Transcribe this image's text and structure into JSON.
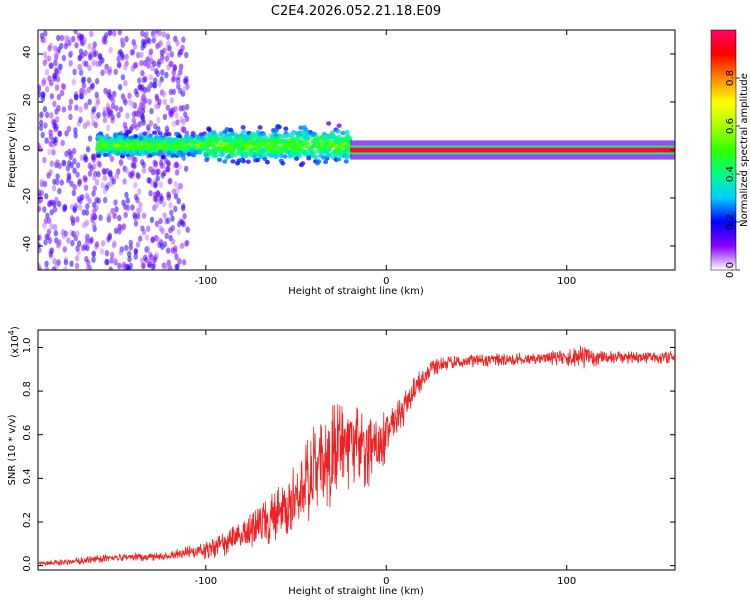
{
  "title": "C2E4.2026.052.21.18.E09",
  "chart_data": [
    {
      "type": "heatmap",
      "name": "spectrogram",
      "xlabel": "Height of straight line (km)",
      "ylabel": "Frequency (Hz)",
      "xlim": [
        -193,
        160
      ],
      "ylim": [
        -50,
        50
      ],
      "xticks": [
        -100,
        0,
        100
      ],
      "xtick_labels": [
        "-100",
        "0",
        "100"
      ],
      "yticks": [
        -40,
        -20,
        0,
        20,
        40
      ],
      "ytick_labels": [
        "-40",
        "-20",
        "0",
        "20",
        "40"
      ],
      "colorbar": {
        "label": "Normalized spectral amplitude",
        "range": [
          0,
          1
        ],
        "ticks": [
          0.0,
          0.2,
          0.4,
          0.6,
          0.8
        ],
        "tick_labels": [
          "0.0",
          "0.2",
          "0.4",
          "0.6",
          "0.8"
        ],
        "colors": [
          "#ffffff",
          "#8800ff",
          "#0000ff",
          "#00ccff",
          "#00ff88",
          "#33ff00",
          "#aaff00",
          "#ffff00",
          "#ff8800",
          "#ff0000",
          "#ff0066"
        ]
      },
      "bands": [
        {
          "x_start": -193,
          "x_end": -110,
          "freq_spread": 50,
          "amplitude": 0.15,
          "note": "broadband noise"
        },
        {
          "x_start": -160,
          "x_end": -100,
          "freq_center": 2,
          "freq_spread": 5,
          "amplitude": 0.45
        },
        {
          "x_start": -100,
          "x_end": -20,
          "freq_center": 2,
          "freq_spread": 8,
          "amplitude": 0.45
        },
        {
          "x_start": -20,
          "x_end": 160,
          "freq_center": 0,
          "freq_spread": 1,
          "amplitude": 1.0
        }
      ]
    },
    {
      "type": "line",
      "name": "snr",
      "xlabel": "Height of straight line (km)",
      "ylabel": "SNR (10 * v/v)",
      "scale_label": "(x10",
      "scale_exp": "4",
      "scale_close": ")",
      "xlim": [
        -193,
        160
      ],
      "ylim": [
        -0.02,
        1.08
      ],
      "xticks": [
        -100,
        0,
        100
      ],
      "xtick_labels": [
        "-100",
        "0",
        "100"
      ],
      "yticks": [
        0.0,
        0.2,
        0.4,
        0.6,
        0.8,
        1.0
      ],
      "ytick_labels": [
        "0.0",
        "0.2",
        "0.4",
        "0.6",
        "0.8",
        "1.0"
      ],
      "series": [
        {
          "name": "SNR",
          "color": "#ee2222",
          "x": [
            -193,
            -180,
            -170,
            -160,
            -150,
            -140,
            -130,
            -120,
            -110,
            -100,
            -90,
            -80,
            -70,
            -60,
            -50,
            -45,
            -40,
            -35,
            -30,
            -25,
            -20,
            -15,
            -10,
            -5,
            0,
            5,
            10,
            15,
            20,
            25,
            30,
            35,
            40,
            50,
            60,
            70,
            80,
            90,
            95,
            100,
            105,
            110,
            115,
            120,
            130,
            140,
            150,
            160
          ],
          "values": [
            0.01,
            0.015,
            0.02,
            0.03,
            0.035,
            0.04,
            0.04,
            0.05,
            0.06,
            0.07,
            0.1,
            0.14,
            0.18,
            0.24,
            0.33,
            0.38,
            0.43,
            0.48,
            0.5,
            0.52,
            0.55,
            0.55,
            0.55,
            0.56,
            0.6,
            0.65,
            0.72,
            0.8,
            0.86,
            0.9,
            0.92,
            0.93,
            0.935,
            0.94,
            0.945,
            0.945,
            0.95,
            0.95,
            0.955,
            0.95,
            0.955,
            0.96,
            0.95,
            0.955,
            0.955,
            0.955,
            0.955,
            0.955
          ],
          "noise": [
            0.01,
            0.015,
            0.02,
            0.02,
            0.02,
            0.02,
            0.02,
            0.02,
            0.03,
            0.04,
            0.06,
            0.08,
            0.1,
            0.12,
            0.16,
            0.2,
            0.22,
            0.24,
            0.25,
            0.25,
            0.22,
            0.2,
            0.2,
            0.15,
            0.12,
            0.1,
            0.08,
            0.06,
            0.05,
            0.04,
            0.035,
            0.03,
            0.03,
            0.03,
            0.03,
            0.03,
            0.03,
            0.03,
            0.05,
            0.04,
            0.05,
            0.06,
            0.04,
            0.03,
            0.03,
            0.03,
            0.03,
            0.03
          ]
        }
      ]
    }
  ]
}
